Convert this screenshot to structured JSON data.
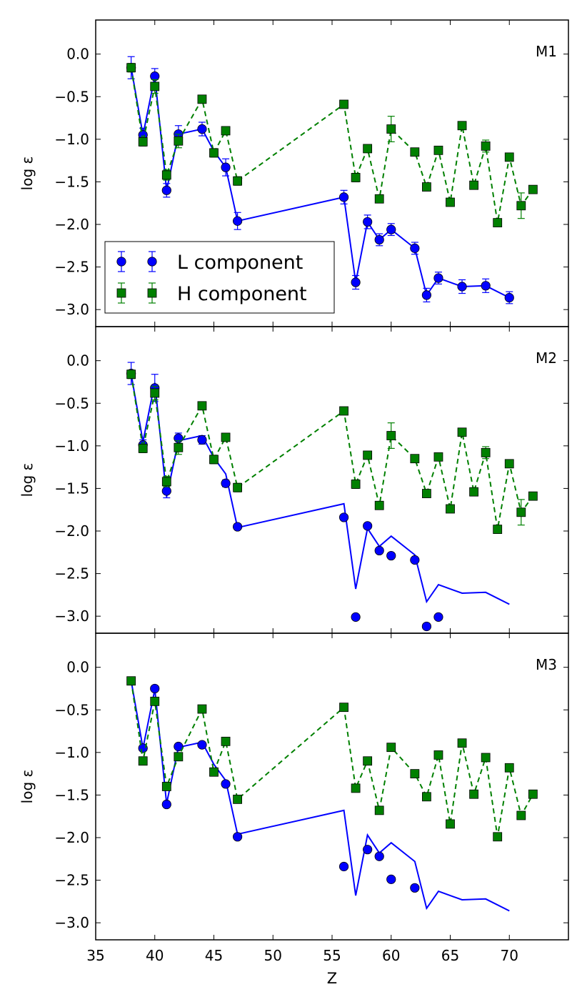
{
  "chart_data": {
    "type": "scatter",
    "shared_xaxis": {
      "label": "Z",
      "xlim": [
        35,
        75
      ],
      "ticks": [
        35,
        40,
        45,
        50,
        55,
        60,
        65,
        70
      ],
      "tick_labels": [
        "35",
        "40",
        "45",
        "50",
        "55",
        "60",
        "65",
        "70"
      ]
    },
    "legend": {
      "placement": "panel M1, lower-left",
      "entries": [
        "L component",
        "H component"
      ]
    },
    "colors": {
      "L": "#0000ff",
      "H": "#008000"
    },
    "panels": [
      {
        "name": "M1",
        "ylabel": "log ε",
        "ylim": [
          -3.2,
          0.4
        ],
        "yticks": [
          0.0,
          -0.5,
          -1.0,
          -1.5,
          -2.0,
          -2.5,
          -3.0
        ],
        "ytick_labels": [
          "0.0",
          "−0.5",
          "−1.0",
          "−1.5",
          "−2.0",
          "−2.5",
          "−3.0"
        ],
        "series": [
          {
            "name": "L component",
            "style": "solid-line",
            "marker": "circle",
            "x": [
              38,
              39,
              40,
              41,
              42,
              44,
              45,
              46,
              47,
              56,
              57,
              58,
              59,
              60,
              62,
              63,
              64,
              66,
              68,
              70
            ],
            "y": [
              -0.16,
              -0.95,
              -0.26,
              -1.6,
              -0.94,
              -0.88,
              -1.14,
              -1.33,
              -1.96,
              -1.68,
              -2.68,
              -1.97,
              -2.18,
              -2.06,
              -2.28,
              -2.83,
              -2.63,
              -2.73,
              -2.72,
              -2.86
            ],
            "yerr": [
              0.13,
              0.08,
              0.09,
              0.08,
              0.1,
              0.08,
              0.05,
              0.1,
              0.1,
              0.08,
              0.08,
              0.08,
              0.07,
              0.07,
              0.07,
              0.08,
              0.07,
              0.08,
              0.08,
              0.07
            ],
            "draw_marker": [
              true,
              true,
              true,
              true,
              true,
              true,
              false,
              true,
              true,
              true,
              true,
              true,
              true,
              true,
              true,
              true,
              true,
              true,
              true,
              true
            ]
          },
          {
            "name": "H component",
            "style": "dashed-line",
            "marker": "square",
            "x": [
              38,
              39,
              40,
              41,
              42,
              44,
              45,
              46,
              47,
              56,
              57,
              58,
              59,
              60,
              62,
              63,
              64,
              65,
              66,
              67,
              68,
              69,
              70,
              71,
              72
            ],
            "y": [
              -0.16,
              -1.03,
              -0.38,
              -1.42,
              -1.02,
              -0.53,
              -1.16,
              -0.9,
              -1.49,
              -0.59,
              -1.45,
              -1.11,
              -1.7,
              -0.88,
              -1.15,
              -1.56,
              -1.13,
              -1.74,
              -0.84,
              -1.54,
              -1.08,
              -1.98,
              -1.21,
              -1.78,
              -1.59
            ],
            "yerr": [
              0.05,
              0.05,
              0.08,
              0.06,
              0.08,
              0.04,
              0.05,
              0.04,
              0.05,
              0.04,
              0.05,
              0.04,
              0.04,
              0.15,
              0.04,
              0.04,
              0.04,
              0.04,
              0.04,
              0.04,
              0.07,
              0.04,
              0.04,
              0.15,
              0.04
            ]
          }
        ]
      },
      {
        "name": "M2",
        "ylabel": "log ε",
        "ylim": [
          -3.2,
          0.4
        ],
        "yticks": [
          0.0,
          -0.5,
          -1.0,
          -1.5,
          -2.0,
          -2.5,
          -3.0
        ],
        "ytick_labels": [
          "0.0",
          "−0.5",
          "−1.0",
          "−1.5",
          "−2.0",
          "−2.5",
          "−3.0"
        ],
        "series": [
          {
            "name": "L model line",
            "style": "solid-line",
            "marker": "none",
            "x": [
              38,
              39,
              40,
              41,
              42,
              44,
              45,
              46,
              47,
              56,
              57,
              58,
              59,
              60,
              62,
              63,
              64,
              66,
              68,
              70
            ],
            "y": [
              -0.16,
              -0.95,
              -0.26,
              -1.6,
              -0.94,
              -0.88,
              -1.14,
              -1.33,
              -1.96,
              -1.68,
              -2.68,
              -1.97,
              -2.18,
              -2.06,
              -2.28,
              -2.83,
              -2.63,
              -2.73,
              -2.72,
              -2.86
            ]
          },
          {
            "name": "L component",
            "style": "none",
            "marker": "circle",
            "x": [
              38,
              39,
              40,
              41,
              42,
              44,
              46,
              47,
              56,
              57,
              58,
              59,
              60,
              62,
              63,
              64
            ],
            "y": [
              -0.15,
              -0.99,
              -0.32,
              -1.53,
              -0.91,
              -0.93,
              -1.44,
              -1.95,
              -1.84,
              -3.01,
              -1.94,
              -2.23,
              -2.29,
              -2.34,
              -3.12,
              -3.01
            ],
            "yerr": [
              0.13,
              0.06,
              0.16,
              0.08,
              0.06,
              0.05,
              0.04,
              0.03,
              0.0,
              0.0,
              0.0,
              0.0,
              0.0,
              0.0,
              0.0,
              0.0
            ]
          },
          {
            "name": "H component",
            "style": "dashed-line",
            "marker": "square",
            "x": [
              38,
              39,
              40,
              41,
              42,
              44,
              45,
              46,
              47,
              56,
              57,
              58,
              59,
              60,
              62,
              63,
              64,
              65,
              66,
              67,
              68,
              69,
              70,
              71,
              72
            ],
            "y": [
              -0.16,
              -1.03,
              -0.38,
              -1.42,
              -1.02,
              -0.53,
              -1.16,
              -0.9,
              -1.49,
              -0.59,
              -1.45,
              -1.11,
              -1.7,
              -0.88,
              -1.15,
              -1.56,
              -1.13,
              -1.74,
              -0.84,
              -1.54,
              -1.08,
              -1.98,
              -1.21,
              -1.78,
              -1.59
            ],
            "yerr": [
              0.05,
              0.05,
              0.08,
              0.06,
              0.08,
              0.04,
              0.05,
              0.04,
              0.05,
              0.04,
              0.05,
              0.04,
              0.04,
              0.15,
              0.04,
              0.04,
              0.04,
              0.04,
              0.04,
              0.04,
              0.07,
              0.04,
              0.04,
              0.15,
              0.04
            ]
          }
        ]
      },
      {
        "name": "M3",
        "ylabel": "log ε",
        "ylim": [
          -3.2,
          0.4
        ],
        "yticks": [
          0.0,
          -0.5,
          -1.0,
          -1.5,
          -2.0,
          -2.5,
          -3.0
        ],
        "ytick_labels": [
          "0.0",
          "−0.5",
          "−1.0",
          "−1.5",
          "−2.0",
          "−2.5",
          "−3.0"
        ],
        "series": [
          {
            "name": "L model line",
            "style": "solid-line",
            "marker": "none",
            "x": [
              38,
              39,
              40,
              41,
              42,
              44,
              45,
              46,
              47,
              56,
              57,
              58,
              59,
              60,
              62,
              63,
              64,
              66,
              68,
              70
            ],
            "y": [
              -0.16,
              -0.95,
              -0.26,
              -1.6,
              -0.94,
              -0.88,
              -1.14,
              -1.33,
              -1.96,
              -1.68,
              -2.68,
              -1.97,
              -2.18,
              -2.06,
              -2.28,
              -2.83,
              -2.63,
              -2.73,
              -2.72,
              -2.86
            ]
          },
          {
            "name": "L component",
            "style": "none",
            "marker": "circle",
            "x": [
              39,
              40,
              41,
              42,
              44,
              46,
              47,
              56,
              58,
              59,
              60,
              62
            ],
            "y": [
              -0.95,
              -0.25,
              -1.61,
              -0.93,
              -0.91,
              -1.37,
              -1.99,
              -2.34,
              -2.14,
              -2.22,
              -2.49,
              -2.59
            ]
          },
          {
            "name": "H component",
            "style": "dashed-line",
            "marker": "square",
            "x": [
              38,
              39,
              40,
              41,
              42,
              44,
              45,
              46,
              47,
              56,
              57,
              58,
              59,
              60,
              62,
              63,
              64,
              65,
              66,
              67,
              68,
              69,
              70,
              71,
              72
            ],
            "y": [
              -0.16,
              -1.1,
              -0.4,
              -1.4,
              -1.05,
              -0.49,
              -1.23,
              -0.87,
              -1.55,
              -0.47,
              -1.42,
              -1.1,
              -1.68,
              -0.94,
              -1.25,
              -1.52,
              -1.03,
              -1.84,
              -0.89,
              -1.49,
              -1.06,
              -1.99,
              -1.18,
              -1.74,
              -1.49
            ]
          }
        ]
      }
    ]
  }
}
